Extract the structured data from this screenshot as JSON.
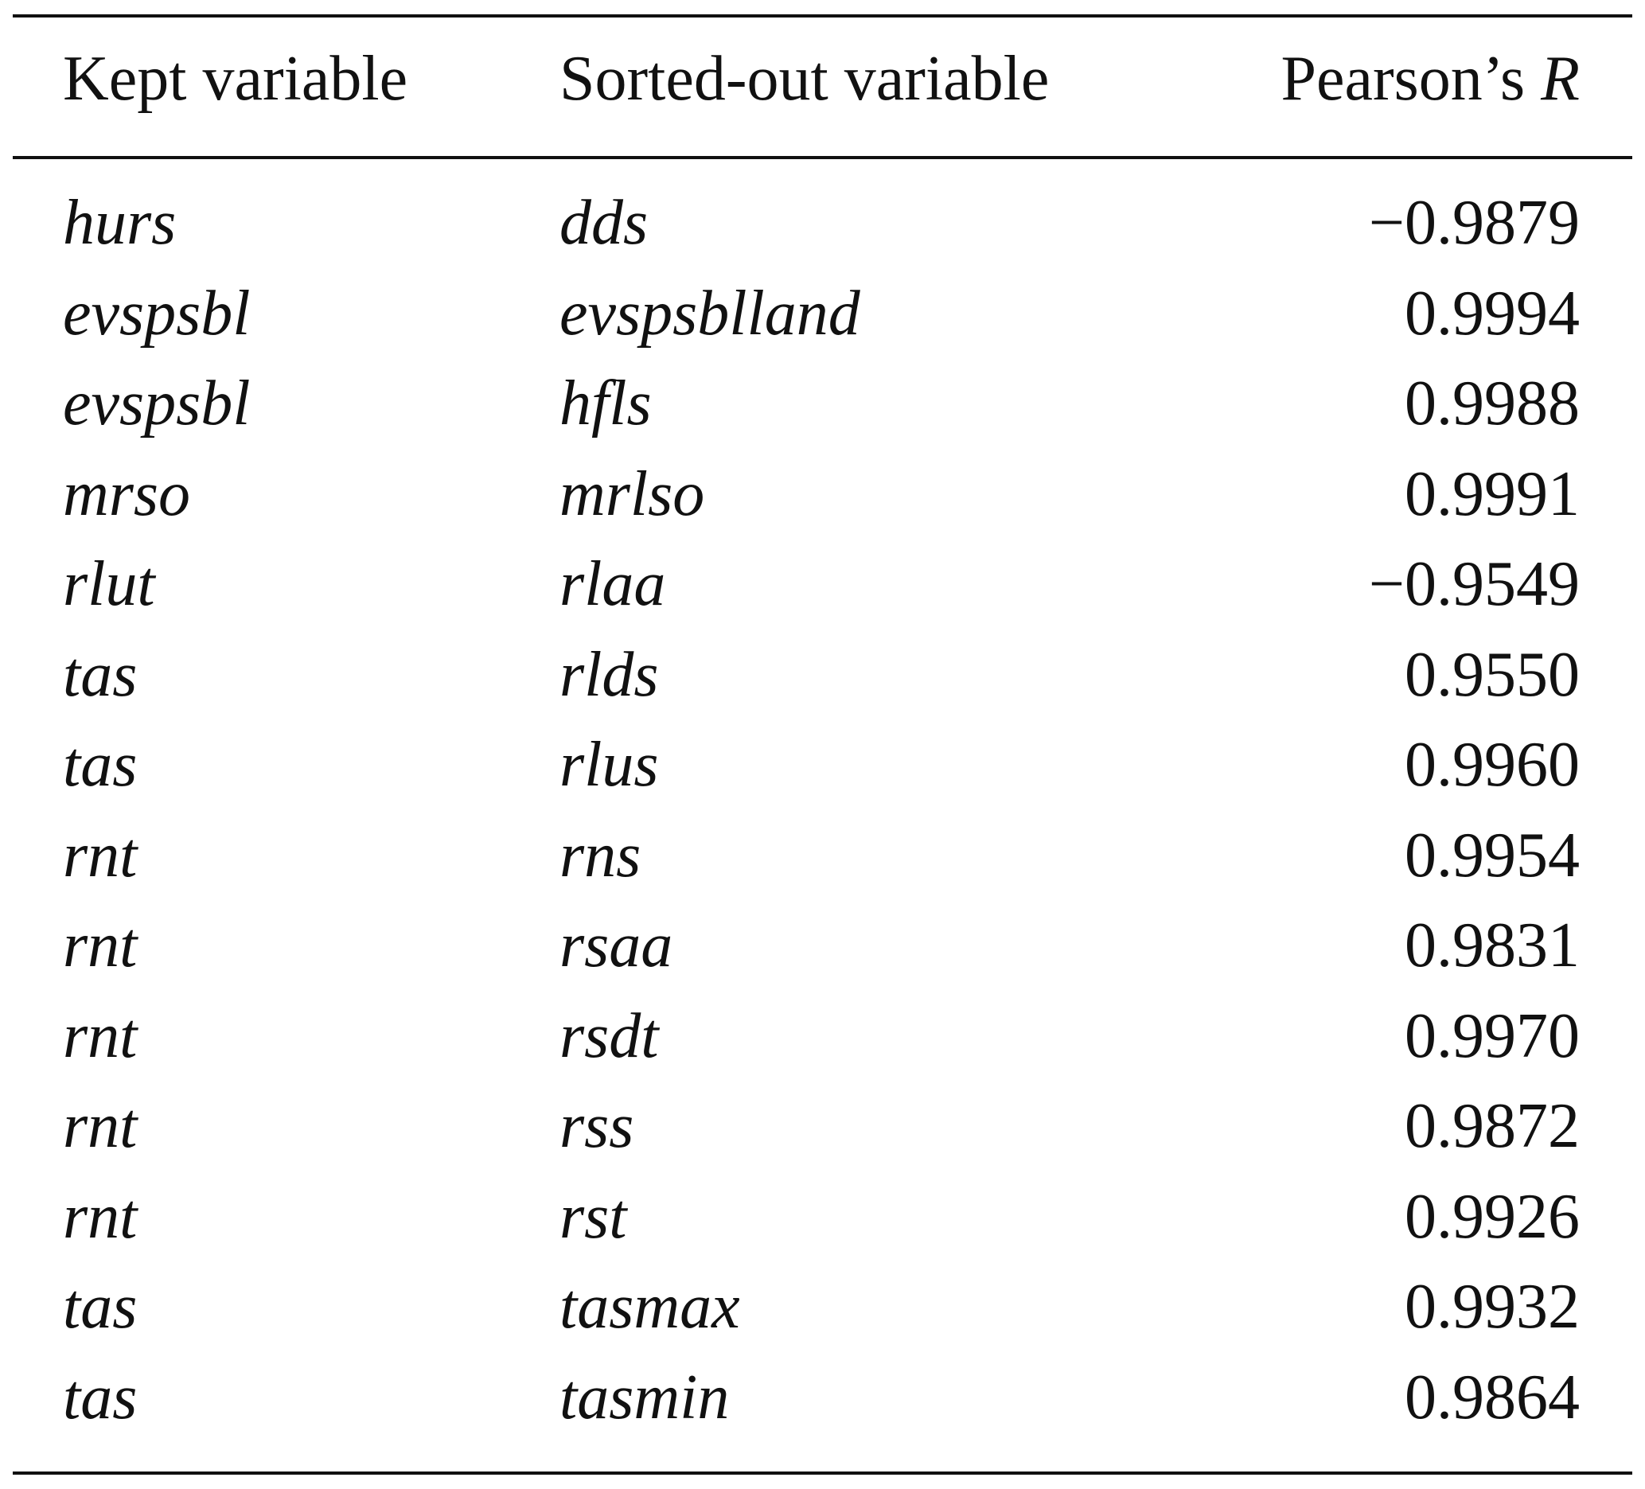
{
  "table": {
    "header": [
      "Kept variable",
      "Sorted-out variable",
      {
        "text": "Pearson’s",
        "symbol": "R"
      }
    ],
    "rows": [
      [
        "hurs",
        "dds",
        "−0.9879"
      ],
      [
        "evspsbl",
        "evspsblland",
        "0.9994"
      ],
      [
        "evspsbl",
        "hfls",
        "0.9988"
      ],
      [
        "mrso",
        "mrlso",
        "0.9991"
      ],
      [
        "rlut",
        "rlaa",
        "−0.9549"
      ],
      [
        "tas",
        "rlds",
        "0.9550"
      ],
      [
        "tas",
        "rlus",
        "0.9960"
      ],
      [
        "rnt",
        "rns",
        "0.9954"
      ],
      [
        "rnt",
        "rsaa",
        "0.9831"
      ],
      [
        "rnt",
        "rsdt",
        "0.9970"
      ],
      [
        "rnt",
        "rss",
        "0.9872"
      ],
      [
        "rnt",
        "rst",
        "0.9926"
      ],
      [
        "tas",
        "tasmax",
        "0.9932"
      ],
      [
        "tas",
        "tasmin",
        "0.9864"
      ]
    ]
  }
}
